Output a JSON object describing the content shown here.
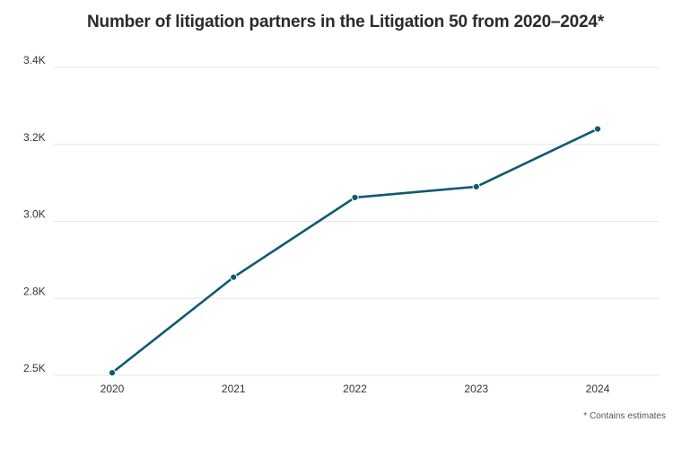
{
  "chart_data": {
    "type": "line",
    "title": "Number of litigation partners in the Litigation 50 from 2020–2024*",
    "xlabel": "",
    "ylabel": "",
    "x": [
      "2020",
      "2021",
      "2022",
      "2023",
      "2024"
    ],
    "series": [
      {
        "values": [
          2510,
          2855,
          3062,
          3090,
          3240
        ]
      }
    ],
    "ylim": [
      2500,
      3400
    ],
    "y_ticks": [
      {
        "value": 2500,
        "label": "2.5K"
      },
      {
        "value": 2800,
        "label": "2.8K"
      },
      {
        "value": 3000,
        "label": "3.0K"
      },
      {
        "value": 3200,
        "label": "3.2K"
      },
      {
        "value": 3400,
        "label": "3.4K"
      }
    ],
    "grid": true,
    "line_color": "#0f5a70",
    "grid_color": "#e6e6e6",
    "footnote": "* Contains estimates"
  }
}
